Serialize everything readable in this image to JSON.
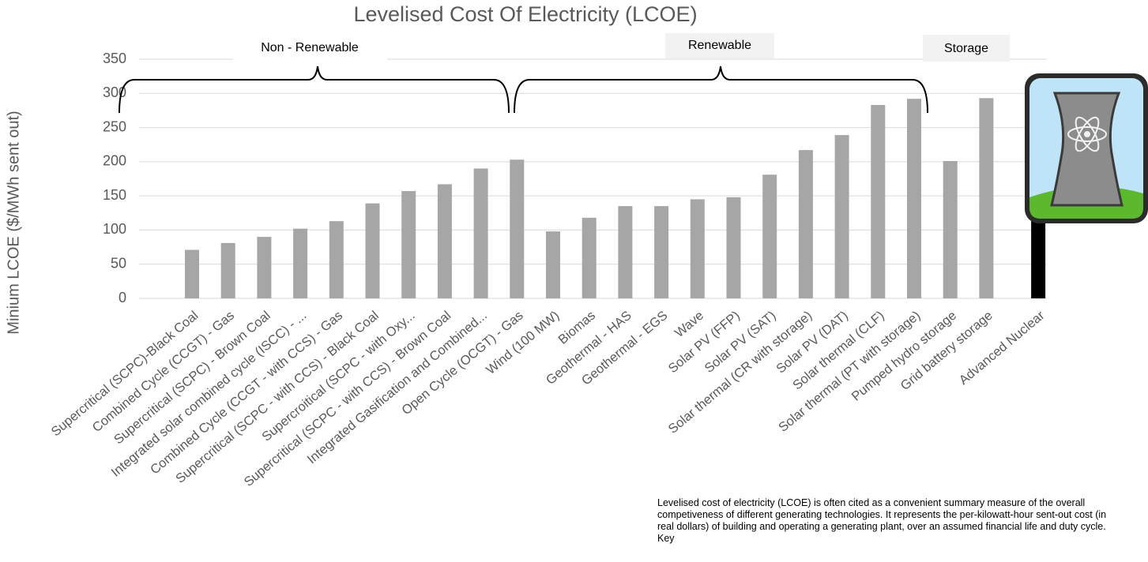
{
  "chart_data": {
    "type": "bar",
    "title": "Levelised Cost Of Electricity (LCOE)",
    "y_label": "Minium LCOE ($/MWh sent out)",
    "categories": [
      "Supercritical (SCPC)-Black Coal",
      "Combined Cycle (CCGT) - Gas",
      "Supercritical (SCPC) - Brown Coal",
      "Integrated solar combined cycle (ISCC) - ...",
      "Combined Cycle (CCGT - with CCS) - Gas",
      "Supercritical (SCPC - with CCS) - Black Coal",
      "Supercroitical (SCPC - with Oxy...",
      "Supercritical (SCPC - with CCS) - Brown Coal",
      "Integrated Gasification and Combined...",
      "Open Cycle (OCGT) - Gas",
      "Wind (100 MW)",
      "Biomas",
      "Geothermal - HAS",
      "Geothermal - EGS",
      "Wave",
      "Solar PV (FFP)",
      "Solar PV (SAT)",
      "Solar thermal (CR with storage)",
      "Solar PV (DAT)",
      "Solar thermal (CLF)",
      "Solar thermal (PT with storage)",
      "Pumped hydro storage",
      "Grid battery storage",
      "Advanced Nuclear"
    ],
    "values": [
      71,
      81,
      90,
      102,
      113,
      139,
      157,
      167,
      190,
      203,
      98,
      118,
      135,
      135,
      145,
      148,
      181,
      217,
      239,
      283,
      292,
      201,
      293,
      126
    ],
    "colors": [
      "#a6a6a6",
      "#a6a6a6",
      "#a6a6a6",
      "#a6a6a6",
      "#a6a6a6",
      "#a6a6a6",
      "#a6a6a6",
      "#a6a6a6",
      "#a6a6a6",
      "#a6a6a6",
      "#a6a6a6",
      "#a6a6a6",
      "#a6a6a6",
      "#a6a6a6",
      "#a6a6a6",
      "#a6a6a6",
      "#a6a6a6",
      "#a6a6a6",
      "#a6a6a6",
      "#a6a6a6",
      "#a6a6a6",
      "#a6a6a6",
      "#a6a6a6",
      "#000000"
    ],
    "ylim": [
      0,
      350
    ],
    "yticks": [
      0,
      50,
      100,
      150,
      200,
      250,
      300,
      350
    ],
    "grid": true,
    "groups": [
      "Non - Renewable",
      "Renewable",
      "Storage"
    ],
    "note": "Levelised cost of electricity (LCOE) is often cited as a convenient summary measure of the overall competiveness of different generating technologies. It represents the per-kilowatt-hour sent-out cost (in real dollars) of building and operating a generating plant, over an assumed financial life and duty cycle. Key"
  }
}
